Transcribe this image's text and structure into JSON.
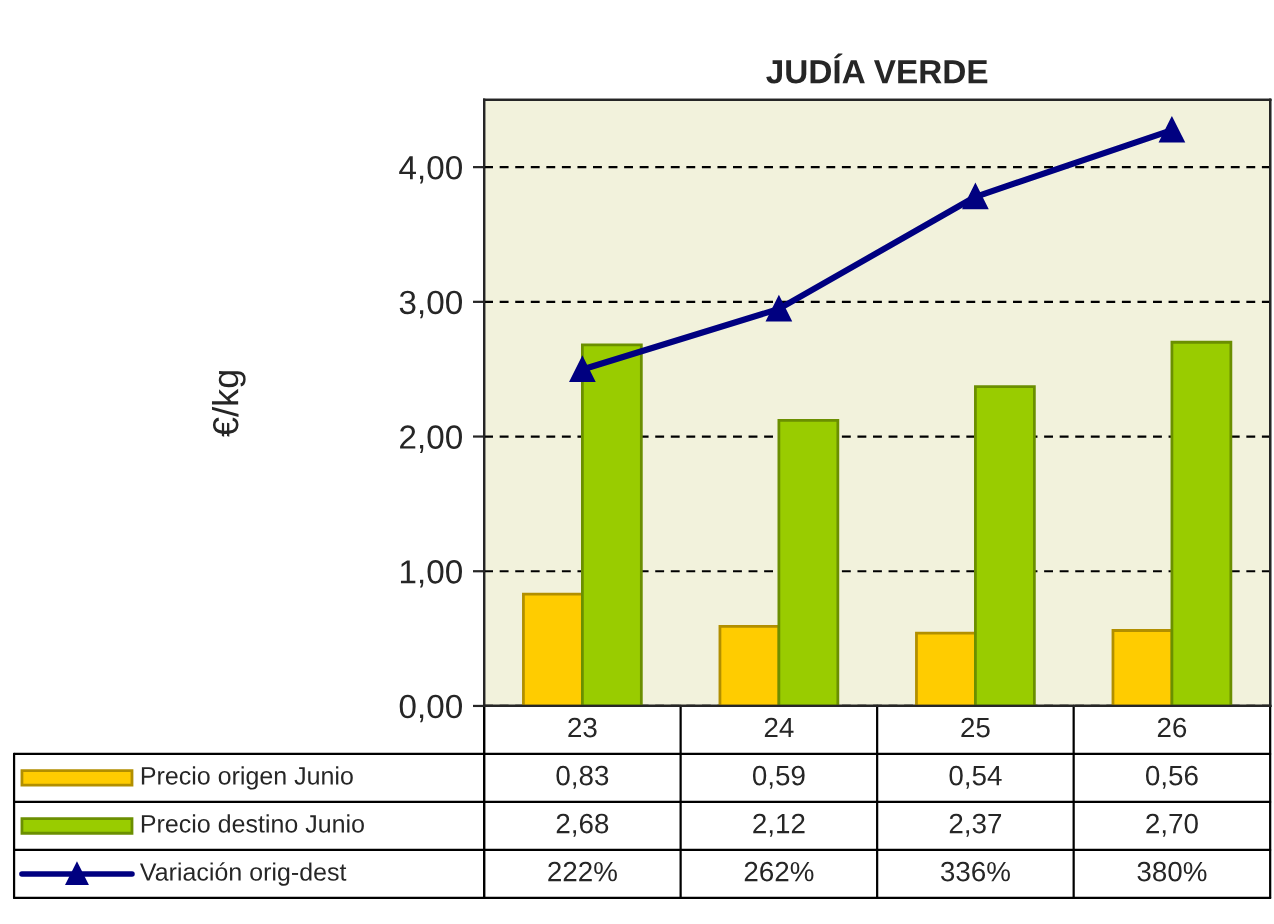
{
  "chart_data": {
    "type": "bar",
    "title": "JUDÍA VERDE",
    "ylabel": "€/kg",
    "categories": [
      "23",
      "24",
      "25",
      "26"
    ],
    "series": [
      {
        "name": "Precio origen Junio",
        "color": "#ffcc00",
        "values": [
          0.83,
          0.59,
          0.54,
          0.56
        ],
        "value_labels": [
          "0,83",
          "0,59",
          "0,54",
          "0,56"
        ]
      },
      {
        "name": "Precio destino Junio",
        "color": "#99cc00",
        "values": [
          2.68,
          2.12,
          2.37,
          2.7
        ],
        "value_labels": [
          "2,68",
          "2,12",
          "2,37",
          "2,70"
        ]
      },
      {
        "name": "Variación orig-dest",
        "type": "line",
        "axis": "y2",
        "color": "#000080",
        "marker": "triangle",
        "values": [
          222,
          262,
          336,
          380
        ],
        "value_labels": [
          "222%",
          "262%",
          "336%",
          "380%"
        ]
      }
    ],
    "ylim": [
      0,
      4.5
    ],
    "yticks": [
      {
        "value": 0,
        "label": "0,00"
      },
      {
        "value": 1,
        "label": "1,00"
      },
      {
        "value": 2,
        "label": "2,00"
      },
      {
        "value": 3,
        "label": "3,00"
      },
      {
        "value": 4,
        "label": "4,00"
      }
    ],
    "y2lim": [
      0,
      400
    ],
    "grid": "y",
    "legend": "bottom"
  }
}
